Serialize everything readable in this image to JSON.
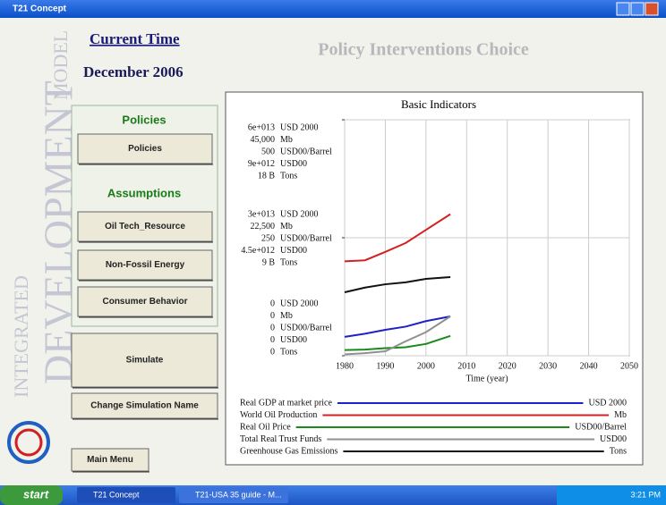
{
  "window": {
    "title": "T21 Concept"
  },
  "header": {
    "current_time_label": "Current Time",
    "current_time": "December 2006",
    "section_title": "Policy Interventions Choice"
  },
  "sidebar": {
    "brand": [
      "INTEGRATED",
      "DEVELOPMENT",
      "MODEL"
    ],
    "policies_heading": "Policies",
    "policies_button": "Policies",
    "assumptions_heading": "Assumptions",
    "assumption_buttons": [
      "Oil Tech_Resource",
      "Non-Fossil Energy",
      "Consumer Behavior"
    ],
    "simulate": "Simulate",
    "change_name": "Change Simulation Name",
    "main_menu": "Main Menu"
  },
  "chart_data": {
    "type": "line",
    "title": "Basic Indicators",
    "x_label": "Time (year)",
    "x": [
      1980,
      1985,
      1990,
      1995,
      2000,
      2006
    ],
    "xlim": [
      1980,
      2050
    ],
    "xticks": [
      1980,
      1990,
      2000,
      2010,
      2020,
      2030,
      2040,
      2050
    ],
    "grid": true,
    "series": [
      {
        "name": "Real GDP at market price",
        "unit": "USD 2000",
        "color": "#2020c8",
        "values": [
          4800000000000.0,
          5600000000000.0,
          6600000000000.0,
          7400000000000.0,
          8800000000000.0,
          10000000000000.0
        ],
        "ylim": [
          0,
          60000000000000.0
        ],
        "yticks": [
          0,
          {
            "value": 30000000000000.0,
            "label": "3e+013"
          },
          {
            "value": 60000000000000.0,
            "label": "6e+013"
          }
        ]
      },
      {
        "name": "World Oil Production",
        "unit": "Mb",
        "color": "#d42020",
        "values": [
          18000,
          18200,
          19800,
          21500,
          24000,
          27000
        ],
        "ylim": [
          0,
          45000
        ],
        "yticks": [
          0,
          {
            "value": 22500,
            "label": "22,500"
          },
          {
            "value": 45000,
            "label": "45,000"
          }
        ]
      },
      {
        "name": "Real Oil Price",
        "unit": "USD00/Barrel",
        "color": "#1a8a1a",
        "values": [
          12,
          13,
          16,
          18,
          25,
          42
        ],
        "ylim": [
          0,
          500
        ],
        "yticks": [
          0,
          250,
          500
        ]
      },
      {
        "name": "Total Real Trust Funds",
        "unit": "USD00",
        "color": "#909090",
        "values": [
          50000000000.0,
          100000000000.0,
          170000000000.0,
          550000000000.0,
          900000000000.0,
          1500000000000.0
        ],
        "ylim": [
          0,
          9000000000000.0
        ],
        "yticks": [
          0,
          {
            "value": 4500000000000.0,
            "label": "4.5e+012"
          },
          {
            "value": 9000000000000.0,
            "label": "9e+012"
          }
        ]
      },
      {
        "name": "Greenhouse Gas Emissions",
        "unit": "Tons",
        "color": "#111111",
        "values": [
          4840000000.0,
          5200000000.0,
          5450000000.0,
          5600000000.0,
          5860000000.0,
          6000000000.0
        ],
        "ylim": [
          0,
          18000000000.0
        ],
        "yticks": [
          0,
          {
            "value": 9000000000.0,
            "label": "9 B"
          },
          {
            "value": 18000000000.0,
            "label": "18 B"
          }
        ]
      }
    ]
  },
  "taskbar": {
    "start": "start",
    "tasks": [
      "T21 Concept",
      "T21-USA 35 guide - M..."
    ],
    "clock": "3:21 PM"
  }
}
